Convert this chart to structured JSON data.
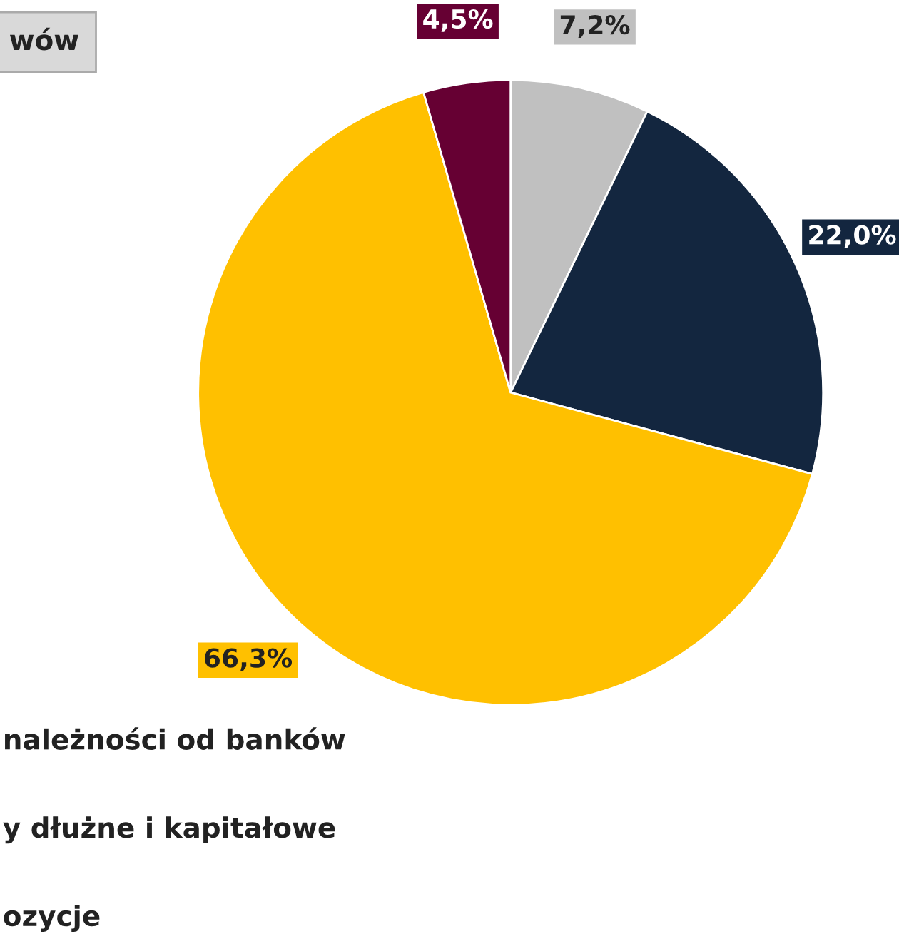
{
  "chart_data": {
    "type": "pie",
    "title": "wów",
    "categories": [
      null,
      null,
      null,
      null
    ],
    "values": [
      7.2,
      22.0,
      66.3,
      4.5
    ],
    "value_labels": [
      "7,2%",
      "22,0%",
      "66,3%",
      "4,5%"
    ],
    "colors": [
      "#c0c0c0",
      "#13263f",
      "#ffc000",
      "#660033"
    ],
    "annotations": [
      "należności od banków",
      "y dłużne i kapitałowe",
      "ozycje"
    ]
  }
}
